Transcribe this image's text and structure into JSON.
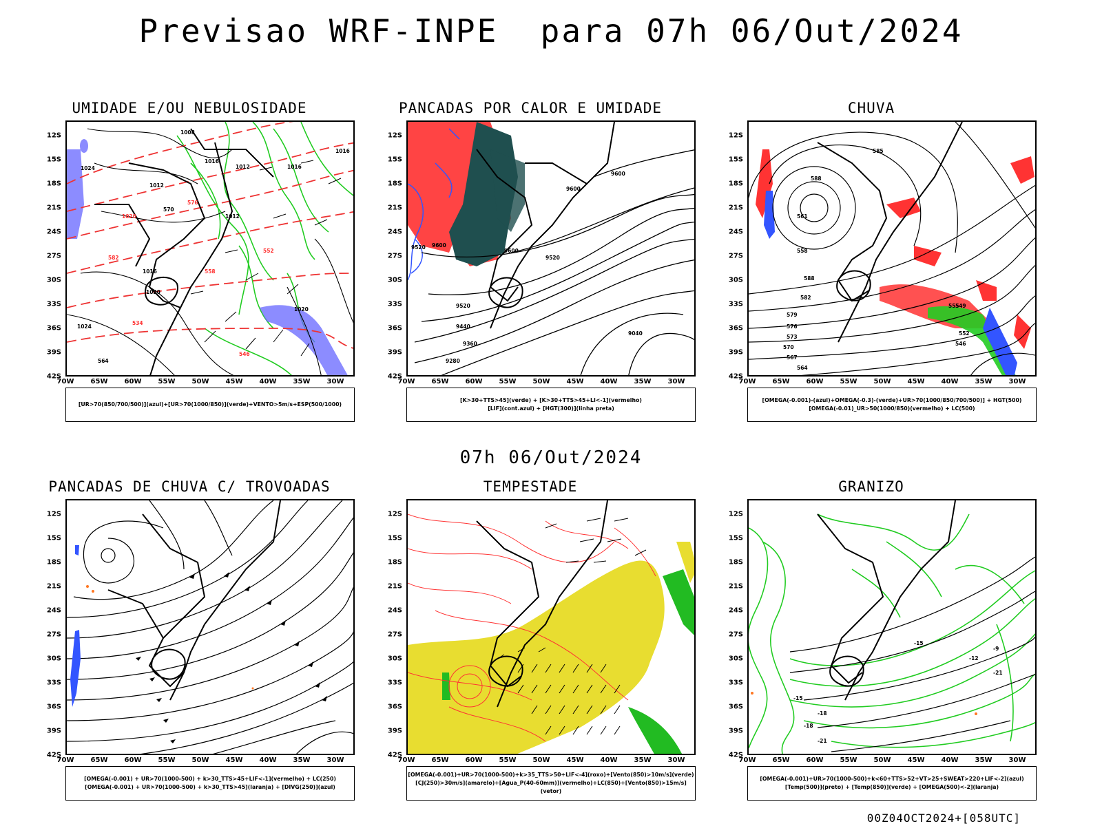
{
  "title": "Previsao WRF-INPE  para 07h 06/Out/2024",
  "subtitle": "07h 06/Out/2024",
  "footer": "00Z04OCT2024+[058UTC]",
  "lat_ticks": [
    "12S",
    "15S",
    "18S",
    "21S",
    "24S",
    "27S",
    "30S",
    "33S",
    "36S",
    "39S",
    "42S"
  ],
  "lon_ticks": [
    "70W",
    "65W",
    "60W",
    "55W",
    "50W",
    "45W",
    "40W",
    "35W",
    "30W"
  ],
  "colors": {
    "green": "#22cc22",
    "red": "#ff3333",
    "blue": "#3355ff",
    "purple_blue": "#6666ff",
    "dark_teal": "#1f4f4f",
    "yellow": "#e8dd30",
    "orange": "#ff7722",
    "contour": "#000000"
  },
  "panels": [
    {
      "title": "UMIDADE E/OU NEBULOSIDADE",
      "legend": [
        "[UR>70(850/700/500)](azul)+[UR>70(1000/850)](verde)+VENTO>5m/s+ESP(500/1000)"
      ],
      "contour_labels": [
        "1008",
        "1012",
        "1016",
        "1012",
        "1016",
        "1020",
        "1024",
        "570",
        "576",
        "582",
        "1020",
        "1016",
        "1012",
        "552",
        "558",
        "546",
        "534",
        "564",
        "1024",
        "1020",
        "1016"
      ]
    },
    {
      "title": "PANCADAS POR CALOR E UMIDADE",
      "legend": [
        "[K>30+TTS>45](verde) + [K>30+TTS>45+LI<-1](vermelho)",
        "[LIF](cont.azul) + [HGT(300)](linha preta)"
      ],
      "contour_labels": [
        "9600",
        "9600",
        "9520",
        "9600",
        "9600",
        "9520",
        "9520",
        "9440",
        "9360",
        "9280",
        "9040"
      ]
    },
    {
      "title": "CHUVA",
      "legend": [
        "[OMEGA(-0.001)-(azul)+OMEGA(-0.3)-(verde)+UR>70(1000/850/700/500)] + HGT(500)",
        "[OMEGA(-0.01)_UR>50(1000/850)(vermelho) + LC(500)"
      ],
      "contour_labels": [
        "585",
        "588",
        "588",
        "582",
        "579",
        "576",
        "573",
        "570",
        "567",
        "564",
        "561",
        "558",
        "555",
        "552",
        "549",
        "546"
      ]
    },
    {
      "title": "PANCADAS DE CHUVA C/ TROVOADAS",
      "legend": [
        "[OMEGA(-0.001) + UR>70(1000-500) + k>30_TTS>45+LIF<-1](vermelho) + LC(250)",
        "[OMEGA(-0.001) + UR>70(1000-500) + k>30_TTS>45](laranja) + [DIVG(250)](azul)"
      ],
      "contour_labels": []
    },
    {
      "title": "TEMPESTADE",
      "legend": [
        "[OMEGA(-0.001)+UR>70(1000-500)+k>35_TTS>50+LIF<-4](roxo)+[Vento(850)>10m/s](verde)",
        "[CJ(250)>30m/s](amarelo)+[Agua_P(40-60mm)](vermelho)+LC(850)+[Vento(850)>15m/s](vetor)"
      ],
      "contour_labels": []
    },
    {
      "title": "GRANIZO",
      "legend": [
        "[OMEGA(-0.001)+UR>70(1000-500)+k<60+TTS>52+VT>25+SWEAT>220+LIF<-2](azul)",
        "[Temp(500)](preto) + [Temp(850)](verde) + [OMEGA(500)<-2](laranja)"
      ],
      "contour_labels": [
        "-9",
        "-12",
        "-15",
        "-18",
        "-21",
        "-21",
        "-18",
        "-15"
      ]
    }
  ]
}
